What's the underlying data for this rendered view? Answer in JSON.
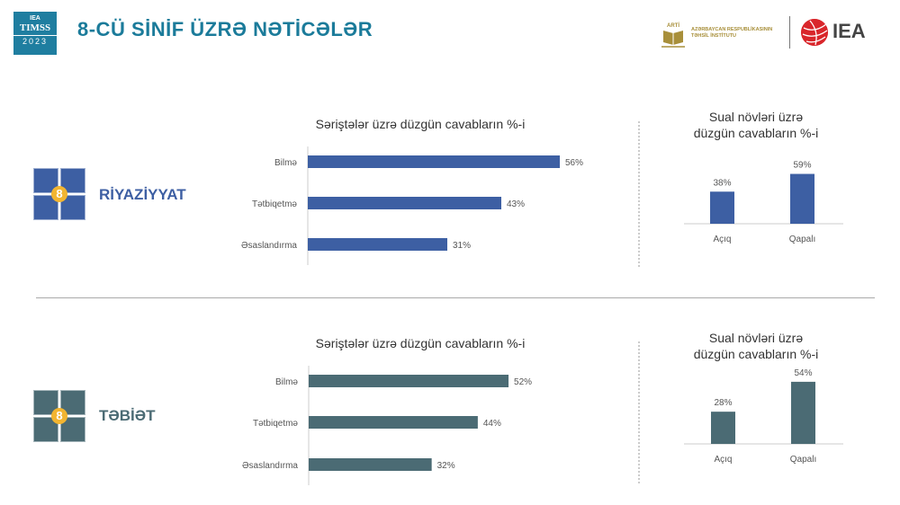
{
  "header": {
    "timss_logo": {
      "top": "IEA",
      "middle": "TIMSS",
      "year": "2023"
    },
    "title": "8-CÜ SİNİF ÜZRƏ NƏTİCƏLƏR",
    "arti_logo": {
      "abbr": "ARTİ",
      "line1": "AZƏRBAYCAN RESPUBLİKASININ",
      "line2": "TƏHSİL İNSTİTUTU"
    },
    "iea_logo": "IEA"
  },
  "subjects": [
    {
      "name": "RİYAZİYYAT",
      "badge": "8",
      "color": "#3d5fa3"
    },
    {
      "name": "TƏBİƏT",
      "badge": "8",
      "color": "#4b6b74"
    }
  ],
  "chart_data": [
    {
      "type": "bar",
      "orientation": "horizontal",
      "subject": "RİYAZİYYAT",
      "title": "Səriştələr üzrə düzgün cavabların %-i",
      "categories": [
        "Bilmə",
        "Tətbiqetmə",
        "Əsaslandırma"
      ],
      "values": [
        56,
        43,
        31
      ],
      "labels": [
        "56%",
        "43%",
        "31%"
      ],
      "color": "#3d5fa3"
    },
    {
      "type": "bar",
      "orientation": "vertical",
      "subject": "RİYAZİYYAT",
      "title": [
        "Sual növləri üzrə",
        "düzgün cavabların %-i"
      ],
      "categories": [
        "Açıq",
        "Qapalı"
      ],
      "values": [
        38,
        59
      ],
      "labels": [
        "38%",
        "59%"
      ],
      "color": "#3d5fa3"
    },
    {
      "type": "bar",
      "orientation": "horizontal",
      "subject": "TƏBİƏT",
      "title": "Səriştələr üzrə düzgün cavabların %-i",
      "categories": [
        "Bilmə",
        "Tətbiqetmə",
        "Əsaslandırma"
      ],
      "values": [
        52,
        44,
        32
      ],
      "labels": [
        "52%",
        "44%",
        "32%"
      ],
      "color": "#4b6b74"
    },
    {
      "type": "bar",
      "orientation": "vertical",
      "subject": "TƏBİƏT",
      "title": [
        "Sual növləri üzrə",
        "düzgün cavabların %-i"
      ],
      "categories": [
        "Açıq",
        "Qapalı"
      ],
      "values": [
        28,
        54
      ],
      "labels": [
        "28%",
        "54%"
      ],
      "color": "#4b6b74"
    }
  ]
}
